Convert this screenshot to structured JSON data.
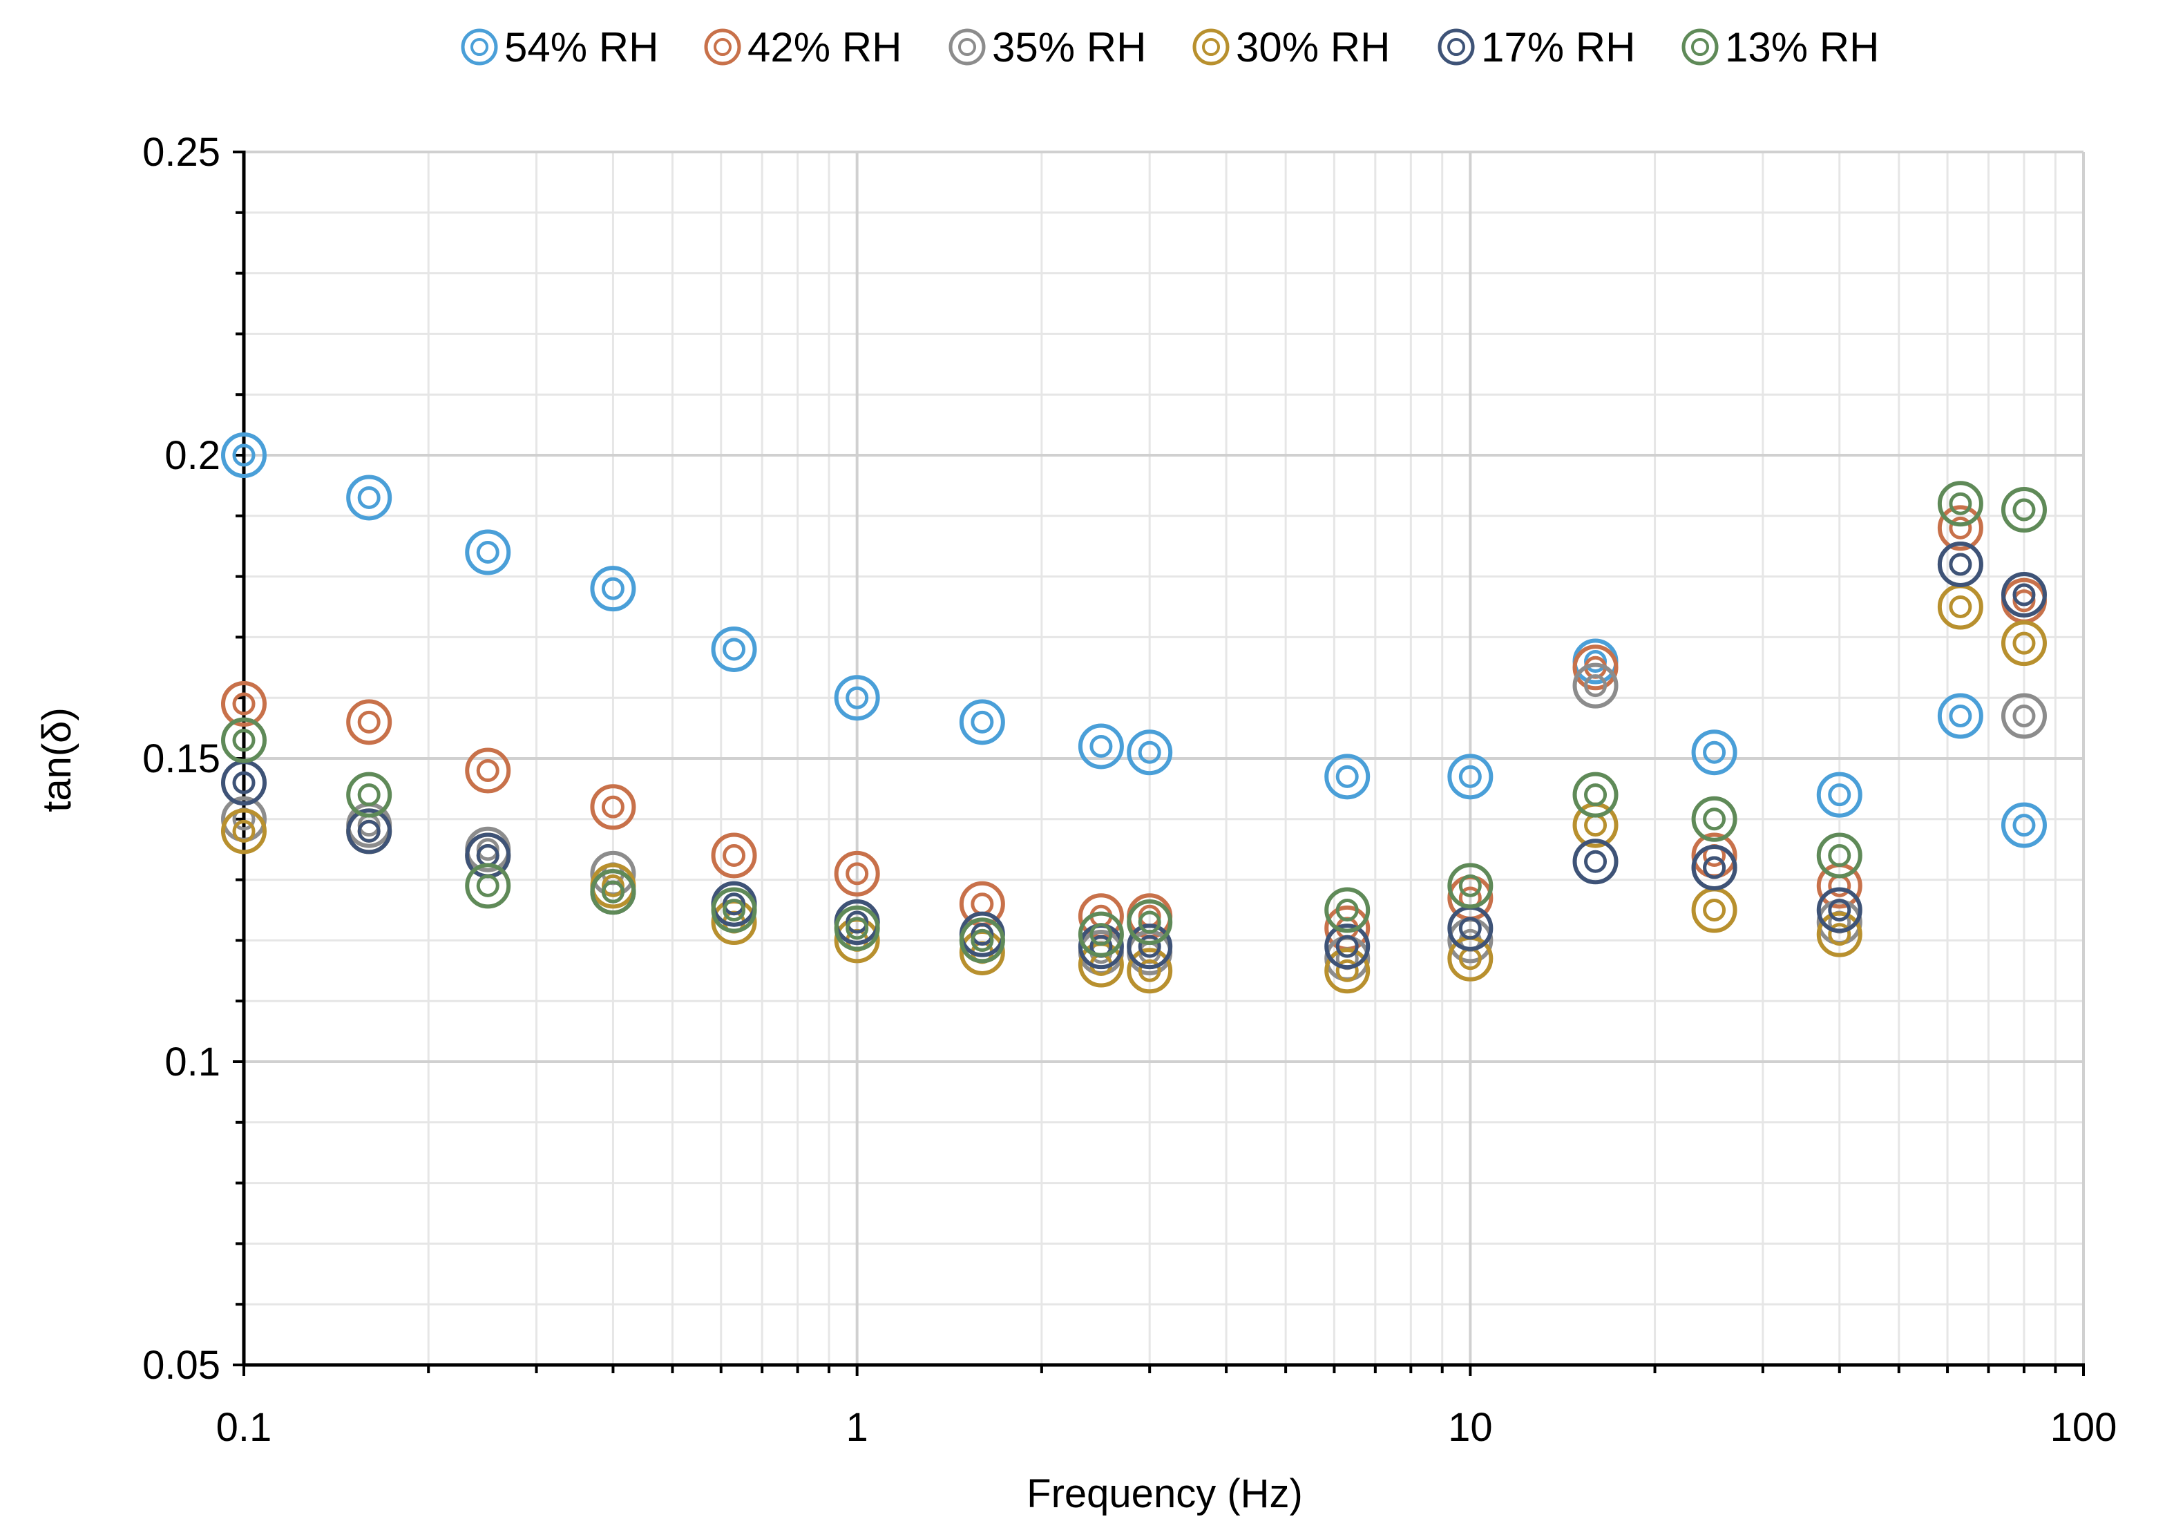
{
  "chart_data": {
    "type": "scatter",
    "title": "",
    "xlabel": "Frequency (Hz)",
    "ylabel": "tan(δ)",
    "xscale": "log",
    "xlim": [
      0.1,
      100
    ],
    "ylim": [
      0.05,
      0.25
    ],
    "x_ticks": [
      0.1,
      1,
      10,
      100
    ],
    "x_tick_labels": [
      "0.1",
      "1",
      "10",
      "100"
    ],
    "y_ticks": [
      0.05,
      0.1,
      0.15,
      0.2,
      0.25
    ],
    "y_tick_labels": [
      "0.05",
      "0.1",
      "0.15",
      "0.2",
      "0.25"
    ],
    "grid": true,
    "legend_position": "top",
    "marker": "double-circle",
    "x": [
      0.1,
      0.16,
      0.25,
      0.4,
      0.63,
      1,
      1.6,
      2.5,
      3,
      6.3,
      10,
      16,
      25,
      40,
      63,
      80
    ],
    "series": [
      {
        "name": "54% RH",
        "color": "#4a9fd8",
        "values": [
          0.2,
          0.193,
          0.184,
          0.178,
          0.168,
          0.16,
          0.156,
          0.152,
          0.151,
          0.147,
          0.147,
          0.166,
          0.151,
          0.144,
          0.157,
          0.139
        ]
      },
      {
        "name": "42% RH",
        "color": "#c8714a",
        "values": [
          0.159,
          0.156,
          0.148,
          0.142,
          0.134,
          0.131,
          0.126,
          0.124,
          0.124,
          0.122,
          0.127,
          0.165,
          0.134,
          0.129,
          0.188,
          0.176
        ]
      },
      {
        "name": "35% RH",
        "color": "#8c8c8c",
        "values": [
          0.14,
          0.139,
          0.135,
          0.131,
          0.126,
          0.123,
          0.12,
          0.118,
          0.118,
          0.117,
          0.12,
          0.162,
          0.132,
          0.123,
          0.182,
          0.157
        ]
      },
      {
        "name": "30% RH",
        "color": "#b8902e",
        "values": [
          0.138,
          0.138,
          0.134,
          0.129,
          0.123,
          0.12,
          0.118,
          0.116,
          0.115,
          0.115,
          0.117,
          0.139,
          0.125,
          0.121,
          0.175,
          0.169
        ]
      },
      {
        "name": "17% RH",
        "color": "#3e5377",
        "values": [
          0.146,
          0.138,
          0.134,
          0.128,
          0.126,
          0.123,
          0.121,
          0.119,
          0.119,
          0.119,
          0.122,
          0.133,
          0.132,
          0.125,
          0.182,
          0.177
        ]
      },
      {
        "name": "13% RH",
        "color": "#5f8a58",
        "values": [
          0.153,
          0.144,
          0.129,
          0.128,
          0.125,
          0.122,
          0.12,
          0.121,
          0.123,
          0.125,
          0.129,
          0.144,
          0.14,
          0.134,
          0.192,
          0.191
        ]
      }
    ]
  }
}
